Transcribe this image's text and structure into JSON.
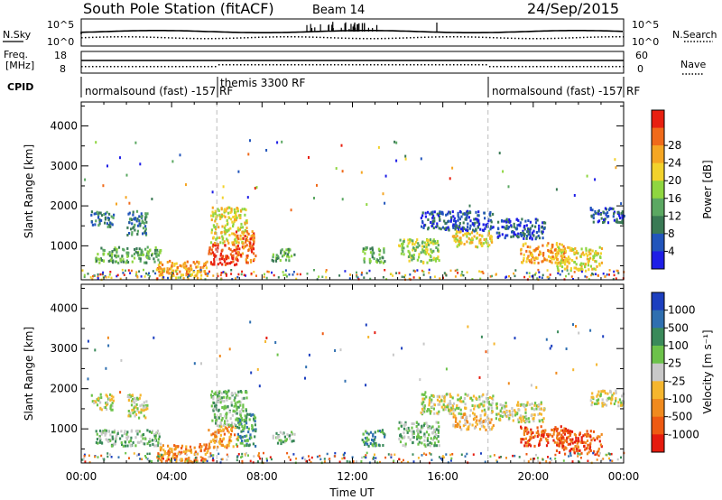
{
  "header": {
    "station": "South Pole Station (fitACF)",
    "beam": "Beam 14",
    "date": "24/Sep/2015"
  },
  "strip": {
    "nsky_label": "N.Sky",
    "nsky_top": "10^5",
    "nsky_bottom": "10^0",
    "nsearch_label": "N.Search",
    "right_top": "10^5",
    "right_bottom": "10^0",
    "freq_label_1": "Freq.",
    "freq_label_2": "[MHz]",
    "freq_top": "18",
    "freq_bottom": "8",
    "nave_label": "Nave",
    "nave_top": "60",
    "nave_bottom": "0",
    "cpid_label": "CPID"
  },
  "cpid_segments": [
    {
      "label": "normalsound (fast) -157 RF",
      "start": 0,
      "end": 6
    },
    {
      "label": "themis 3300 RF",
      "start": 6,
      "end": 18
    },
    {
      "label": "normalsound (fast) -157 RF",
      "start": 18,
      "end": 24
    }
  ],
  "chart_data": [
    {
      "type": "heatmap",
      "name": "power",
      "ylabel": "Slant Range [km]",
      "ylim": [
        150,
        4600
      ],
      "xlim": [
        0,
        24
      ],
      "yticks": [
        1000,
        2000,
        3000,
        4000
      ],
      "colorbar_label": "Power [dB]",
      "colorbar_ticks": [
        "4",
        "8",
        "12",
        "16",
        "20",
        "24",
        "28"
      ],
      "colors": [
        "#1e1ee6",
        "#2255bb",
        "#3a7a55",
        "#5ba862",
        "#8fd640",
        "#f2d22c",
        "#f5a623",
        "#f06a1a",
        "#e82010"
      ],
      "clusters": [
        {
          "t0": 0.6,
          "t1": 3.5,
          "r0": 600,
          "r1": 1000,
          "level": 3
        },
        {
          "t0": 0.4,
          "t1": 1.4,
          "r0": 1500,
          "r1": 1900,
          "level": 2
        },
        {
          "t0": 2.0,
          "t1": 2.9,
          "r0": 1300,
          "r1": 1900,
          "level": 2
        },
        {
          "t0": 3.3,
          "t1": 5.6,
          "r0": 200,
          "r1": 650,
          "level": 6
        },
        {
          "t0": 5.6,
          "t1": 6.9,
          "r0": 550,
          "r1": 1100,
          "level": 8
        },
        {
          "t0": 5.7,
          "t1": 7.3,
          "r0": 1100,
          "r1": 2000,
          "level": 5
        },
        {
          "t0": 6.8,
          "t1": 7.7,
          "r0": 600,
          "r1": 1400,
          "level": 7
        },
        {
          "t0": 8.4,
          "t1": 9.4,
          "r0": 650,
          "r1": 950,
          "level": 3
        },
        {
          "t0": 12.4,
          "t1": 13.4,
          "r0": 600,
          "r1": 1000,
          "level": 3
        },
        {
          "t0": 14.0,
          "t1": 15.8,
          "r0": 600,
          "r1": 1200,
          "level": 4
        },
        {
          "t0": 15.0,
          "t1": 18.2,
          "r0": 1400,
          "r1": 1900,
          "level": 1
        },
        {
          "t0": 16.4,
          "t1": 18.2,
          "r0": 1000,
          "r1": 1400,
          "level": 5
        },
        {
          "t0": 18.3,
          "t1": 20.5,
          "r0": 1200,
          "r1": 1700,
          "level": 1
        },
        {
          "t0": 19.4,
          "t1": 21.4,
          "r0": 600,
          "r1": 1100,
          "level": 6
        },
        {
          "t0": 21.0,
          "t1": 23.0,
          "r0": 400,
          "r1": 1000,
          "level": 5
        },
        {
          "t0": 22.5,
          "t1": 24.0,
          "r0": 1600,
          "r1": 2000,
          "level": 1
        }
      ]
    },
    {
      "type": "heatmap",
      "name": "velocity",
      "ylabel": "Slant Range [km]",
      "ylim": [
        150,
        4600
      ],
      "xlim": [
        0,
        24
      ],
      "yticks": [
        1000,
        2000,
        3000,
        4000
      ],
      "colorbar_label": "Velocity [m s⁻¹]",
      "colorbar_ticks": [
        "1000",
        "500",
        "100",
        "25",
        "-25",
        "-100",
        "-500",
        "-1000"
      ],
      "colors": [
        "#1c3fbf",
        "#2f6fb0",
        "#3a8a5a",
        "#6cc24a",
        "#c8c8c8",
        "#f5b62e",
        "#f08a1e",
        "#ee5a12",
        "#e51b0e"
      ],
      "clusters": [
        {
          "t0": 0.6,
          "t1": 3.5,
          "r0": 600,
          "r1": 1000,
          "level": 3
        },
        {
          "t0": 0.4,
          "t1": 1.4,
          "r0": 1500,
          "r1": 1900,
          "level": 4
        },
        {
          "t0": 2.0,
          "t1": 2.9,
          "r0": 1300,
          "r1": 1900,
          "level": 4
        },
        {
          "t0": 3.3,
          "t1": 5.6,
          "r0": 200,
          "r1": 650,
          "level": 6
        },
        {
          "t0": 5.6,
          "t1": 6.9,
          "r0": 550,
          "r1": 1100,
          "level": 6
        },
        {
          "t0": 5.7,
          "t1": 7.3,
          "r0": 1100,
          "r1": 2000,
          "level": 3
        },
        {
          "t0": 6.8,
          "t1": 7.7,
          "r0": 600,
          "r1": 1400,
          "level": 2
        },
        {
          "t0": 8.4,
          "t1": 9.4,
          "r0": 650,
          "r1": 950,
          "level": 3
        },
        {
          "t0": 12.4,
          "t1": 13.4,
          "r0": 600,
          "r1": 1000,
          "level": 2
        },
        {
          "t0": 14.0,
          "t1": 15.8,
          "r0": 600,
          "r1": 1200,
          "level": 3
        },
        {
          "t0": 15.0,
          "t1": 18.2,
          "r0": 1400,
          "r1": 1900,
          "level": 4
        },
        {
          "t0": 16.4,
          "t1": 18.2,
          "r0": 1000,
          "r1": 1400,
          "level": 5
        },
        {
          "t0": 18.3,
          "t1": 20.5,
          "r0": 1200,
          "r1": 1700,
          "level": 4
        },
        {
          "t0": 19.4,
          "t1": 21.4,
          "r0": 600,
          "r1": 1100,
          "level": 7
        },
        {
          "t0": 21.0,
          "t1": 23.0,
          "r0": 400,
          "r1": 1000,
          "level": 7
        },
        {
          "t0": 22.5,
          "t1": 24.0,
          "r0": 1600,
          "r1": 2000,
          "level": 4
        }
      ]
    }
  ],
  "xaxis": {
    "label": "Time UT",
    "ticks": [
      "00:00",
      "04:00",
      "08:00",
      "12:00",
      "16:00",
      "20:00",
      "00:00"
    ],
    "tick_hours": [
      0,
      4,
      8,
      12,
      16,
      20,
      24
    ]
  }
}
